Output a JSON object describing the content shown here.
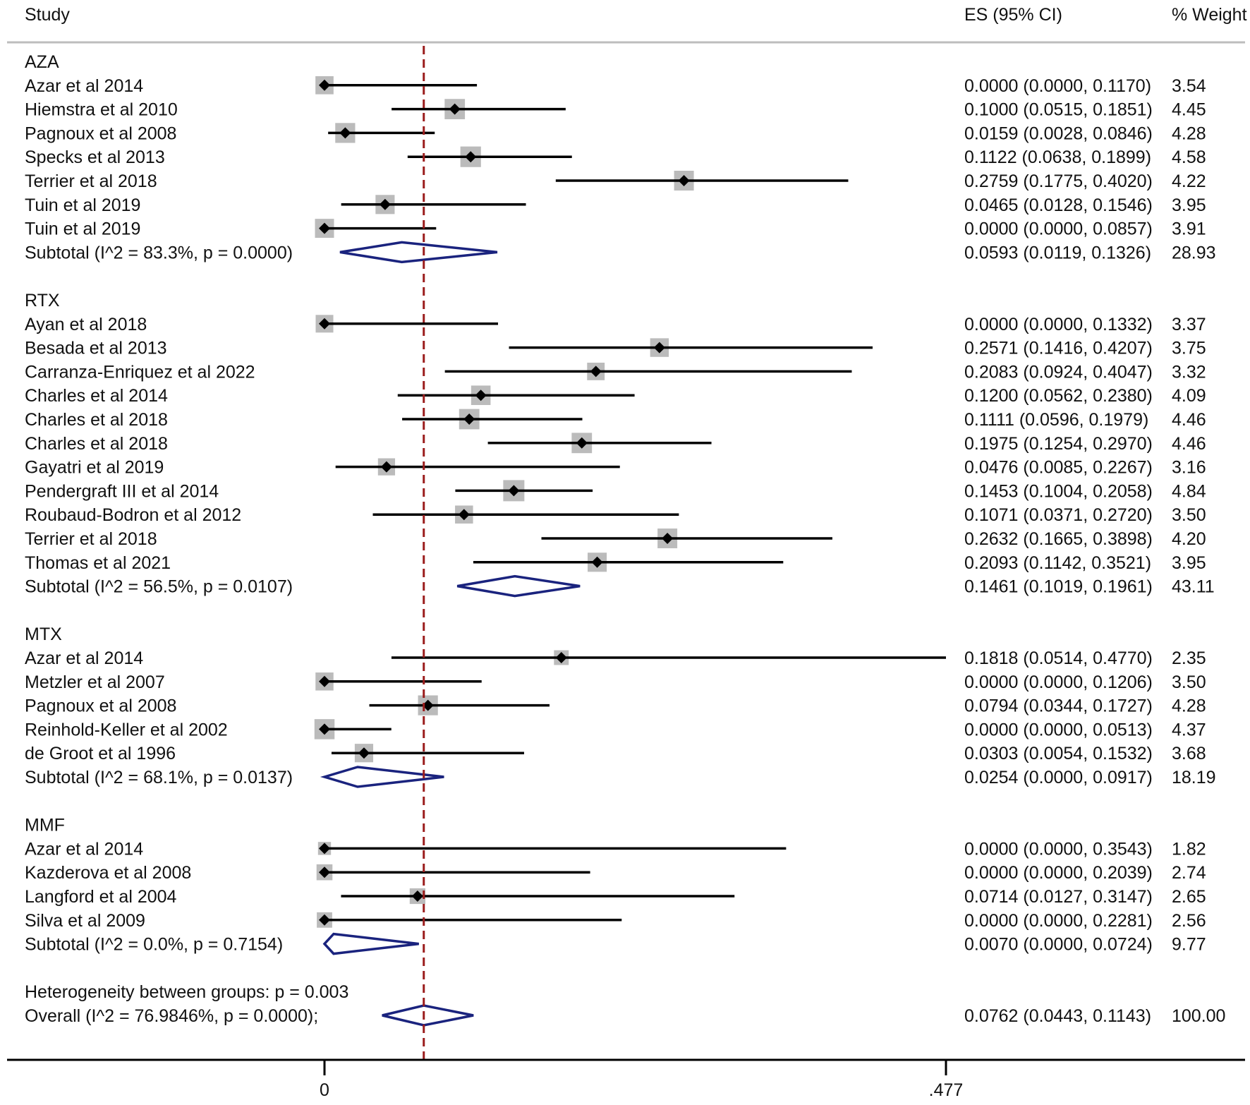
{
  "chart_data": {
    "type": "forest",
    "headers": {
      "study": "Study",
      "es": "ES (95% CI)",
      "weight": "% Weight"
    },
    "xlim": [
      0,
      0.477
    ],
    "xticks": [
      {
        "value": 0,
        "label": "0"
      },
      {
        "value": 0.477,
        "label": ".477"
      }
    ],
    "overall_es": 0.0762,
    "colors": {
      "ci": "#000000",
      "box": "#bbbbbb",
      "diamond": "#1a237e",
      "ref_line": "#9b1c1c",
      "axis": "#000000"
    },
    "groups": [
      {
        "name": "AZA",
        "studies": [
          {
            "study": "Azar et al 2014",
            "es": 0.0,
            "lo": 0.0,
            "hi": 0.117,
            "es_ci": "0.0000 (0.0000, 0.1170)",
            "weight": 3.54,
            "weight_label": "3.54"
          },
          {
            "study": "Hiemstra et al 2010",
            "es": 0.1,
            "lo": 0.0515,
            "hi": 0.1851,
            "es_ci": "0.1000 (0.0515, 0.1851)",
            "weight": 4.45,
            "weight_label": "4.45"
          },
          {
            "study": "Pagnoux et al 2008",
            "es": 0.0159,
            "lo": 0.0028,
            "hi": 0.0846,
            "es_ci": "0.0159 (0.0028, 0.0846)",
            "weight": 4.28,
            "weight_label": "4.28"
          },
          {
            "study": "Specks et al 2013",
            "es": 0.1122,
            "lo": 0.0638,
            "hi": 0.1899,
            "es_ci": "0.1122 (0.0638, 0.1899)",
            "weight": 4.58,
            "weight_label": "4.58"
          },
          {
            "study": "Terrier et al 2018",
            "es": 0.2759,
            "lo": 0.1775,
            "hi": 0.402,
            "es_ci": "0.2759 (0.1775, 0.4020)",
            "weight": 4.22,
            "weight_label": "4.22"
          },
          {
            "study": "Tuin et al 2019",
            "es": 0.0465,
            "lo": 0.0128,
            "hi": 0.1546,
            "es_ci": "0.0465 (0.0128, 0.1546)",
            "weight": 3.95,
            "weight_label": "3.95"
          },
          {
            "study": "Tuin et al 2019",
            "es": 0.0,
            "lo": 0.0,
            "hi": 0.0857,
            "es_ci": "0.0000 (0.0000, 0.0857)",
            "weight": 3.91,
            "weight_label": "3.91"
          }
        ],
        "subtotal": {
          "label": "Subtotal  (I^2 = 83.3%, p = 0.0000)",
          "es": 0.0593,
          "lo": 0.0119,
          "hi": 0.1326,
          "es_ci": "0.0593 (0.0119, 0.1326)",
          "weight_label": "28.93"
        }
      },
      {
        "name": "RTX",
        "studies": [
          {
            "study": "Ayan et al 2018",
            "es": 0.0,
            "lo": 0.0,
            "hi": 0.1332,
            "es_ci": "0.0000 (0.0000, 0.1332)",
            "weight": 3.37,
            "weight_label": "3.37"
          },
          {
            "study": "Besada et al 2013",
            "es": 0.2571,
            "lo": 0.1416,
            "hi": 0.4207,
            "es_ci": "0.2571 (0.1416, 0.4207)",
            "weight": 3.75,
            "weight_label": "3.75"
          },
          {
            "study": "Carranza-Enriquez et al 2022",
            "es": 0.2083,
            "lo": 0.0924,
            "hi": 0.4047,
            "es_ci": "0.2083 (0.0924, 0.4047)",
            "weight": 3.32,
            "weight_label": "3.32"
          },
          {
            "study": "Charles et al 2014",
            "es": 0.12,
            "lo": 0.0562,
            "hi": 0.238,
            "es_ci": "0.1200 (0.0562, 0.2380)",
            "weight": 4.09,
            "weight_label": "4.09"
          },
          {
            "study": "Charles et al 2018",
            "es": 0.1111,
            "lo": 0.0596,
            "hi": 0.1979,
            "es_ci": "0.1111 (0.0596, 0.1979)",
            "weight": 4.46,
            "weight_label": "4.46"
          },
          {
            "study": "Charles et al 2018",
            "es": 0.1975,
            "lo": 0.1254,
            "hi": 0.297,
            "es_ci": "0.1975 (0.1254, 0.2970)",
            "weight": 4.46,
            "weight_label": "4.46"
          },
          {
            "study": "Gayatri et al 2019",
            "es": 0.0476,
            "lo": 0.0085,
            "hi": 0.2267,
            "es_ci": "0.0476 (0.0085, 0.2267)",
            "weight": 3.16,
            "weight_label": "3.16"
          },
          {
            "study": "Pendergraft III et al 2014",
            "es": 0.1453,
            "lo": 0.1004,
            "hi": 0.2058,
            "es_ci": "0.1453 (0.1004, 0.2058)",
            "weight": 4.84,
            "weight_label": "4.84"
          },
          {
            "study": "Roubaud-Bodron et al 2012",
            "es": 0.1071,
            "lo": 0.0371,
            "hi": 0.272,
            "es_ci": "0.1071 (0.0371, 0.2720)",
            "weight": 3.5,
            "weight_label": "3.50"
          },
          {
            "study": "Terrier et al 2018",
            "es": 0.2632,
            "lo": 0.1665,
            "hi": 0.3898,
            "es_ci": "0.2632 (0.1665, 0.3898)",
            "weight": 4.2,
            "weight_label": "4.20"
          },
          {
            "study": "Thomas et al 2021",
            "es": 0.2093,
            "lo": 0.1142,
            "hi": 0.3521,
            "es_ci": "0.2093 (0.1142, 0.3521)",
            "weight": 3.95,
            "weight_label": "3.95"
          }
        ],
        "subtotal": {
          "label": "Subtotal  (I^2 = 56.5%, p = 0.0107)",
          "es": 0.1461,
          "lo": 0.1019,
          "hi": 0.1961,
          "es_ci": "0.1461 (0.1019, 0.1961)",
          "weight_label": "43.11"
        }
      },
      {
        "name": "MTX",
        "studies": [
          {
            "study": "Azar et al 2014",
            "es": 0.1818,
            "lo": 0.0514,
            "hi": 0.477,
            "es_ci": "0.1818 (0.0514, 0.4770)",
            "weight": 2.35,
            "weight_label": "2.35"
          },
          {
            "study": "Metzler et al 2007",
            "es": 0.0,
            "lo": 0.0,
            "hi": 0.1206,
            "es_ci": "0.0000 (0.0000, 0.1206)",
            "weight": 3.5,
            "weight_label": "3.50"
          },
          {
            "study": "Pagnoux et al 2008",
            "es": 0.0794,
            "lo": 0.0344,
            "hi": 0.1727,
            "es_ci": "0.0794 (0.0344, 0.1727)",
            "weight": 4.28,
            "weight_label": "4.28"
          },
          {
            "study": "Reinhold-Keller et al 2002",
            "es": 0.0,
            "lo": 0.0,
            "hi": 0.0513,
            "es_ci": "0.0000 (0.0000, 0.0513)",
            "weight": 4.37,
            "weight_label": "4.37"
          },
          {
            "study": "de Groot et al 1996",
            "es": 0.0303,
            "lo": 0.0054,
            "hi": 0.1532,
            "es_ci": "0.0303 (0.0054, 0.1532)",
            "weight": 3.68,
            "weight_label": "3.68"
          }
        ],
        "subtotal": {
          "label": "Subtotal  (I^2 = 68.1%, p = 0.0137)",
          "es": 0.0254,
          "lo": 0.0,
          "hi": 0.0917,
          "es_ci": "0.0254 (0.0000, 0.0917)",
          "weight_label": "18.19"
        }
      },
      {
        "name": "MMF",
        "studies": [
          {
            "study": "Azar et al 2014",
            "es": 0.0,
            "lo": 0.0,
            "hi": 0.3543,
            "es_ci": "0.0000 (0.0000, 0.3543)",
            "weight": 1.82,
            "weight_label": "1.82"
          },
          {
            "study": "Kazderova et al 2008",
            "es": 0.0,
            "lo": 0.0,
            "hi": 0.2039,
            "es_ci": "0.0000 (0.0000, 0.2039)",
            "weight": 2.74,
            "weight_label": "2.74"
          },
          {
            "study": "Langford et al 2004",
            "es": 0.0714,
            "lo": 0.0127,
            "hi": 0.3147,
            "es_ci": "0.0714 (0.0127, 0.3147)",
            "weight": 2.65,
            "weight_label": "2.65"
          },
          {
            "study": "Silva et al 2009",
            "es": 0.0,
            "lo": 0.0,
            "hi": 0.2281,
            "es_ci": "0.0000 (0.0000, 0.2281)",
            "weight": 2.56,
            "weight_label": "2.56"
          }
        ],
        "subtotal": {
          "label": "Subtotal  (I^2 = 0.0%, p = 0.7154)",
          "es": 0.007,
          "lo": 0.0,
          "hi": 0.0724,
          "es_ci": "0.0070 (0.0000, 0.0724)",
          "weight_label": "9.77"
        }
      }
    ],
    "heterogeneity_text": "Heterogeneity between groups: p = 0.003",
    "overall": {
      "label": "Overall  (I^2 = 76.9846%, p = 0.0000);",
      "es": 0.0762,
      "lo": 0.0443,
      "hi": 0.1143,
      "es_ci": "0.0762 (0.0443, 0.1143)",
      "weight_label": "100.00"
    }
  }
}
